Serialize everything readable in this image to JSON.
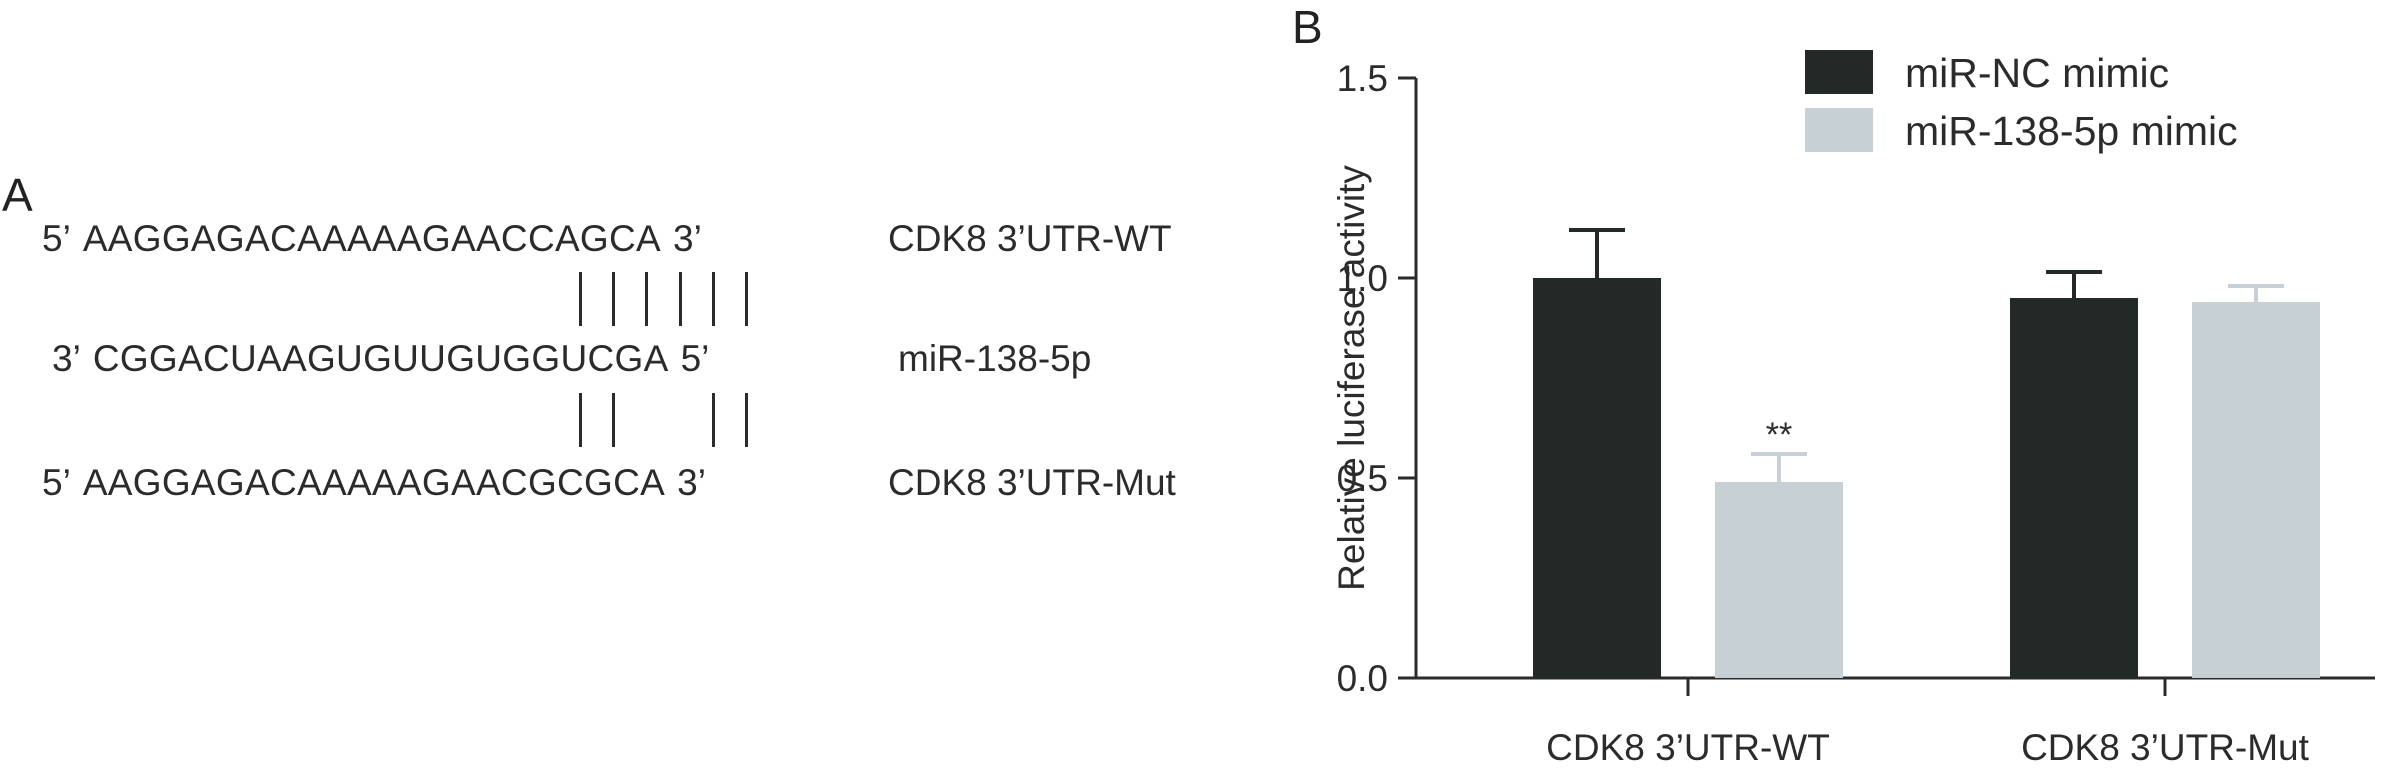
{
  "panel_a": {
    "letter": "A",
    "rows": [
      {
        "end5": "5’",
        "sequence": "AAGGAGACAAAAAGAACCAGCA",
        "end3": "3’",
        "label": "CDK8 3’UTR-WT"
      },
      {
        "end5": "3’",
        "sequence": "CGGACUAAGUGUUGUGGUCGA",
        "end3": "5’",
        "label": "miR-138-5p"
      },
      {
        "end5": "5’",
        "sequence": "AAGGAGACAAAAAGAACGCGCA",
        "end3": "3’",
        "label": "CDK8 3’UTR-Mut"
      }
    ]
  },
  "panel_b": {
    "letter": "B"
  },
  "chart_data": {
    "type": "bar",
    "categories": [
      "CDK8 3’UTR-WT",
      "CDK8 3’UTR-Mut"
    ],
    "series": [
      {
        "name": "miR-NC mimic",
        "color": "#232927",
        "values": [
          1.0,
          0.95
        ],
        "errors": [
          0.12,
          0.065
        ]
      },
      {
        "name": "miR-138-5p mimic",
        "color": "#c7d1d5",
        "values": [
          0.49,
          0.94
        ],
        "errors": [
          0.07,
          0.04
        ]
      }
    ],
    "annotations": [
      {
        "category": 0,
        "series": 1,
        "text": "**"
      }
    ],
    "title": "",
    "xlabel": "",
    "ylabel": "Relative luciferase activity",
    "ylim": [
      0,
      1.5
    ],
    "yticks": [
      0.0,
      0.5,
      1.0,
      1.5
    ],
    "ytick_labels": [
      "0.0",
      "0.5",
      "1.0",
      "1.5"
    ],
    "legend": "top-right",
    "grid": false
  }
}
